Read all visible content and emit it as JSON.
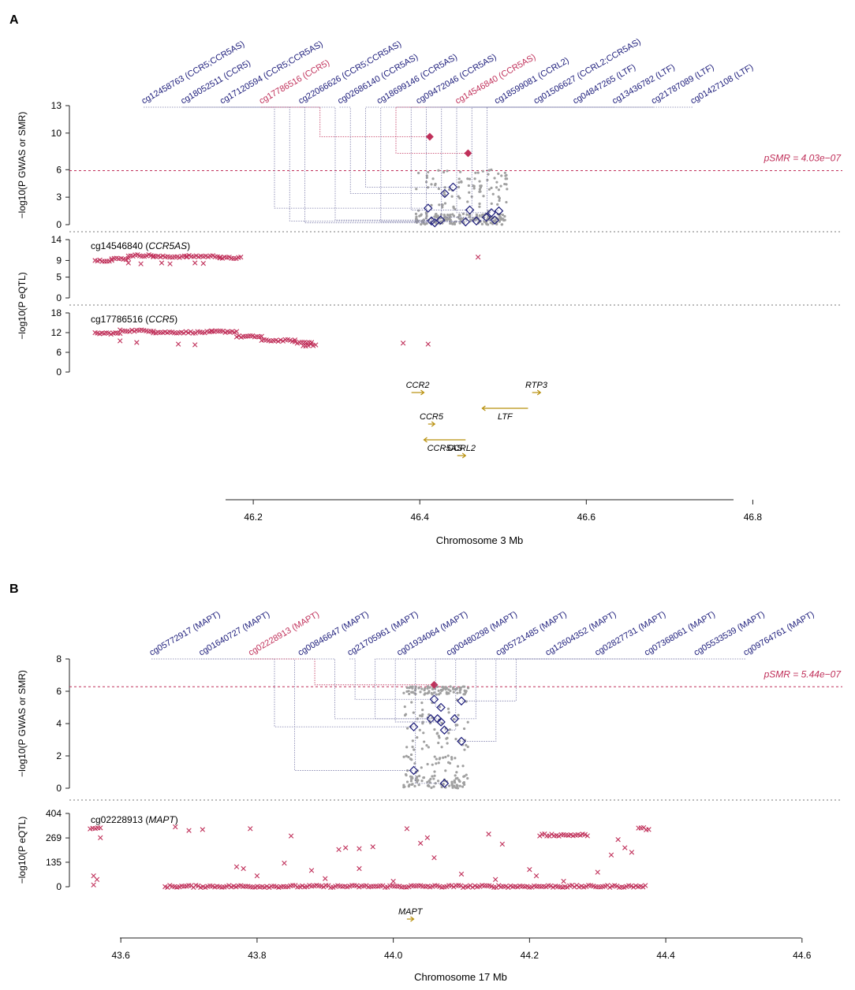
{
  "colors": {
    "navy": "#1b1b7a",
    "crimson": "#c0305a",
    "grey": "#a0a0a0",
    "gold": "#b8900c",
    "axis": "#222222",
    "guide": "#7a7aa8"
  },
  "chart_data": [
    {
      "type": "scatter",
      "panel_label": "A",
      "title": "",
      "xlabel": "Chromosome 3 Mb",
      "xlim": [
        46.0,
        46.9
      ],
      "xticks": [
        "46.2",
        "46.4",
        "46.6",
        "46.8"
      ],
      "gwas": {
        "ylabel": "−log10(P GWAS or SMR)",
        "ylim": [
          0,
          13
        ],
        "yticks": [
          "0",
          "3",
          "6",
          "10",
          "13"
        ],
        "threshold": 5.9,
        "threshold_label": "pSMR = 4.03e−07",
        "smr_probes": [
          {
            "name": "cg12458763 (CCR5;CCR5AS)",
            "x": 46.41,
            "y": 1.8,
            "hit": false
          },
          {
            "name": "cg18052511 (CCR5)",
            "x": 46.414,
            "y": 0.4,
            "hit": false
          },
          {
            "name": "cg17120594 (CCR5;CCR5AS)",
            "x": 46.418,
            "y": 0.2,
            "hit": false
          },
          {
            "name": "cg17786516 (CCR5)",
            "x": 46.412,
            "y": 9.6,
            "hit": true
          },
          {
            "name": "cg22066626 (CCR5;CCR5AS)",
            "x": 46.425,
            "y": 0.5,
            "hit": false
          },
          {
            "name": "cg02686140 (CCR5AS)",
            "x": 46.43,
            "y": 3.4,
            "hit": false
          },
          {
            "name": "cg18699146 (CCR5AS)",
            "x": 46.44,
            "y": 4.1,
            "hit": false
          },
          {
            "name": "cg09472046 (CCR5AS)",
            "x": 46.455,
            "y": 0.3,
            "hit": false
          },
          {
            "name": "cg14546840 (CCR5AS)",
            "x": 46.458,
            "y": 7.8,
            "hit": true
          },
          {
            "name": "cg18599081 (CCRL2)",
            "x": 46.46,
            "y": 1.6,
            "hit": false
          },
          {
            "name": "cg01506627 (CCRL2;CCR5AS)",
            "x": 46.468,
            "y": 0.4,
            "hit": false
          },
          {
            "name": "cg04847265 (LTF)",
            "x": 46.48,
            "y": 0.8,
            "hit": false
          },
          {
            "name": "cg13436782 (LTF)",
            "x": 46.486,
            "y": 1.3,
            "hit": false
          },
          {
            "name": "cg21787089 (LTF)",
            "x": 46.49,
            "y": 0.5,
            "hit": false
          },
          {
            "name": "cg01427108 (LTF)",
            "x": 46.495,
            "y": 1.5,
            "hit": false
          }
        ]
      },
      "eqtl_ylabel": "−log10(P eQTL)",
      "eqtl": [
        {
          "probe": "cg14546840",
          "gene": "CCR5AS",
          "ylim": [
            0,
            14
          ],
          "yticks": [
            "0",
            "5",
            "9",
            "14"
          ],
          "segments": [
            {
              "x0": 46.01,
              "x1": 46.03,
              "y": 9.0
            },
            {
              "x0": 46.03,
              "x1": 46.05,
              "y": 9.4
            },
            {
              "x0": 46.05,
              "x1": 46.08,
              "y": 10.2
            },
            {
              "x0": 46.08,
              "x1": 46.12,
              "y": 9.9
            },
            {
              "x0": 46.12,
              "x1": 46.16,
              "y": 10.0
            },
            {
              "x0": 46.16,
              "x1": 46.185,
              "y": 9.6
            }
          ],
          "extra_points": [
            [
              46.05,
              8.4
            ],
            [
              46.065,
              8.2
            ],
            [
              46.09,
              8.4
            ],
            [
              46.1,
              8.2
            ],
            [
              46.13,
              8.4
            ],
            [
              46.14,
              8.3
            ],
            [
              46.47,
              9.8
            ]
          ]
        },
        {
          "probe": "cg17786516",
          "gene": "CCR5",
          "ylim": [
            0,
            18
          ],
          "yticks": [
            "0",
            "6",
            "12",
            "18"
          ],
          "segments": [
            {
              "x0": 46.01,
              "x1": 46.04,
              "y": 11.8
            },
            {
              "x0": 46.04,
              "x1": 46.08,
              "y": 12.6
            },
            {
              "x0": 46.08,
              "x1": 46.15,
              "y": 12.1
            },
            {
              "x0": 46.15,
              "x1": 46.18,
              "y": 12.3
            },
            {
              "x0": 46.18,
              "x1": 46.21,
              "y": 10.8
            },
            {
              "x0": 46.21,
              "x1": 46.25,
              "y": 9.6
            },
            {
              "x0": 46.25,
              "x1": 46.27,
              "y": 9.0
            },
            {
              "x0": 46.26,
              "x1": 46.275,
              "y": 8.2
            }
          ],
          "extra_points": [
            [
              46.04,
              9.5
            ],
            [
              46.06,
              9.0
            ],
            [
              46.11,
              8.5
            ],
            [
              46.13,
              8.3
            ],
            [
              46.38,
              8.8
            ],
            [
              46.41,
              8.5
            ]
          ]
        }
      ],
      "genes": [
        {
          "name": "CCR2",
          "start": 46.39,
          "end": 46.405,
          "strand": "+",
          "row": 0
        },
        {
          "name": "RTP3",
          "start": 46.535,
          "end": 46.545,
          "strand": "+",
          "row": 0
        },
        {
          "name": "LTF",
          "start": 46.475,
          "end": 46.53,
          "strand": "-",
          "row": 1
        },
        {
          "name": "CCR5",
          "start": 46.41,
          "end": 46.418,
          "strand": "+",
          "row": 2
        },
        {
          "name": "CCR5AS",
          "start": 46.405,
          "end": 46.455,
          "strand": "-",
          "row": 3
        },
        {
          "name": "CCRL2",
          "start": 46.445,
          "end": 46.455,
          "strand": "+",
          "row": 4
        }
      ]
    },
    {
      "type": "scatter",
      "panel_label": "B",
      "title": "",
      "xlabel": "Chromosome 17 Mb",
      "xlim": [
        43.55,
        44.65
      ],
      "xticks": [
        "43.6",
        "43.8",
        "44.0",
        "44.2",
        "44.4",
        "44.6"
      ],
      "gwas": {
        "ylabel": "−log10(P GWAS or SMR)",
        "ylim": [
          0,
          8
        ],
        "yticks": [
          "0",
          "2",
          "4",
          "6",
          "8"
        ],
        "threshold": 6.28,
        "threshold_label": "pSMR = 5.44e−07",
        "smr_probes": [
          {
            "name": "cg05772917 (MAPT)",
            "x": 44.03,
            "y": 3.8,
            "hit": false
          },
          {
            "name": "cg01640727 (MAPT)",
            "x": 44.03,
            "y": 1.1,
            "hit": false
          },
          {
            "name": "cg02228913 (MAPT)",
            "x": 44.06,
            "y": 6.4,
            "hit": true
          },
          {
            "name": "cg00846647 (MAPT)",
            "x": 44.055,
            "y": 4.3,
            "hit": false
          },
          {
            "name": "cg21705961 (MAPT)",
            "x": 44.06,
            "y": 5.5,
            "hit": false
          },
          {
            "name": "cg01934064 (MAPT)",
            "x": 44.065,
            "y": 4.3,
            "hit": false
          },
          {
            "name": "cg00480298 (MAPT)",
            "x": 44.07,
            "y": 4.1,
            "hit": false
          },
          {
            "name": "cg05721485 (MAPT)",
            "x": 44.075,
            "y": 0.3,
            "hit": false
          },
          {
            "name": "cg12604352 (MAPT)",
            "x": 44.07,
            "y": 5.0,
            "hit": false
          },
          {
            "name": "cg02827731 (MAPT)",
            "x": 44.075,
            "y": 3.6,
            "hit": false
          },
          {
            "name": "cg07368061 (MAPT)",
            "x": 44.09,
            "y": 4.3,
            "hit": false
          },
          {
            "name": "cg05533539 (MAPT)",
            "x": 44.1,
            "y": 2.9,
            "hit": false
          },
          {
            "name": "cg09764761 (MAPT)",
            "x": 44.1,
            "y": 5.4,
            "hit": false
          }
        ]
      },
      "eqtl_ylabel": "−log10(P eQTL)",
      "eqtl": [
        {
          "probe": "cg02228913",
          "gene": "MAPT",
          "ylim": [
            0,
            404
          ],
          "yticks": [
            "0",
            "135",
            "269",
            "404"
          ],
          "segments": [
            {
              "x0": 43.665,
              "x1": 44.37,
              "y": 2
            },
            {
              "x0": 44.215,
              "x1": 44.285,
              "y": 285
            },
            {
              "x0": 44.36,
              "x1": 44.375,
              "y": 320
            },
            {
              "x0": 43.555,
              "x1": 43.57,
              "y": 320
            }
          ],
          "extra_points": [
            [
              43.56,
              60
            ],
            [
              43.565,
              40
            ],
            [
              43.56,
              10
            ],
            [
              43.57,
              270
            ],
            [
              43.68,
              330
            ],
            [
              43.7,
              310
            ],
            [
              43.72,
              315
            ],
            [
              43.79,
              320
            ],
            [
              43.77,
              110
            ],
            [
              43.78,
              100
            ],
            [
              43.85,
              280
            ],
            [
              43.88,
              90
            ],
            [
              43.92,
              205
            ],
            [
              43.93,
              215
            ],
            [
              43.95,
              210
            ],
            [
              43.97,
              220
            ],
            [
              44.02,
              320
            ],
            [
              44.05,
              270
            ],
            [
              44.06,
              160
            ],
            [
              44.04,
              240
            ],
            [
              44.14,
              290
            ],
            [
              44.16,
              235
            ],
            [
              44.15,
              40
            ],
            [
              44.2,
              95
            ],
            [
              44.21,
              60
            ],
            [
              44.32,
              175
            ],
            [
              44.33,
              260
            ],
            [
              44.34,
              215
            ],
            [
              44.35,
              190
            ],
            [
              43.8,
              60
            ],
            [
              43.84,
              130
            ],
            [
              43.9,
              45
            ],
            [
              43.95,
              100
            ],
            [
              44.0,
              30
            ],
            [
              44.1,
              70
            ],
            [
              44.25,
              30
            ],
            [
              44.3,
              80
            ]
          ]
        }
      ],
      "genes": [
        {
          "name": "MAPT",
          "start": 44.02,
          "end": 44.03,
          "strand": "+",
          "row": 0
        }
      ]
    }
  ]
}
